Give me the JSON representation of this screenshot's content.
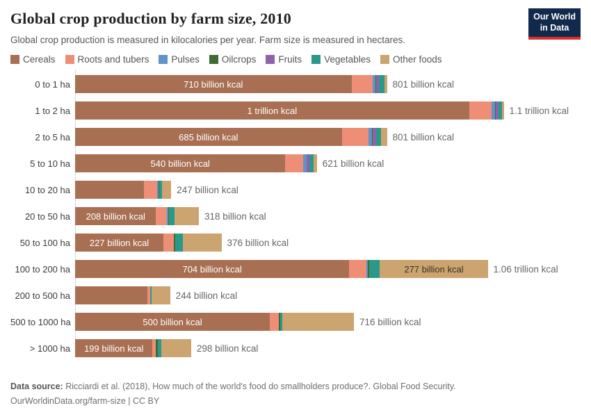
{
  "header": {
    "logo_line1": "Our World",
    "logo_line2": "in Data"
  },
  "chart_data": {
    "type": "bar",
    "stacked": true,
    "orientation": "horizontal",
    "title": "Global crop production by farm size, 2010",
    "subtitle": "Global crop production is measured in kilocalories per year. Farm size is measured in hectares.",
    "unit": "billion kcal",
    "legend_position": "top",
    "grid": false,
    "series": [
      {
        "name": "Cereals",
        "color": "#A86F52"
      },
      {
        "name": "Roots and tubers",
        "color": "#EE8E76"
      },
      {
        "name": "Pulses",
        "color": "#6093C9"
      },
      {
        "name": "Oilcrops",
        "color": "#3E6C35"
      },
      {
        "name": "Fruits",
        "color": "#8F62AB"
      },
      {
        "name": "Vegetables",
        "color": "#2B998A"
      },
      {
        "name": "Other foods",
        "color": "#CBA46F"
      }
    ],
    "categories": [
      "0 to 1 ha",
      "1 to 2 ha",
      "2 to 5 ha",
      "5 to 10 ha",
      "10 to 20 ha",
      "20 to 50 ha",
      "50 to 100 ha",
      "100 to 200 ha",
      "200 to 500 ha",
      "500 to 1000 ha",
      "> 1000 ha"
    ],
    "rows": [
      {
        "category": "0 to 1 ha",
        "values": [
          710,
          55,
          7,
          2,
          7,
          14,
          6
        ],
        "cereals_label": "710 billion kcal",
        "other_foods_label": null,
        "total_label": "801 billion kcal"
      },
      {
        "category": "1 to 2 ha",
        "values": [
          1012,
          57,
          9,
          2,
          7,
          9,
          5
        ],
        "cereals_label": "1 trillion kcal",
        "other_foods_label": null,
        "total_label": "1.1 trillion kcal"
      },
      {
        "category": "2 to 5 ha",
        "values": [
          685,
          69,
          9,
          2,
          9,
          12,
          15
        ],
        "cereals_label": "685 billion kcal",
        "other_foods_label": null,
        "total_label": "801 billion kcal"
      },
      {
        "category": "5 to 10 ha",
        "values": [
          540,
          46,
          9,
          0,
          7,
          10,
          9
        ],
        "cereals_label": "540 billion kcal",
        "other_foods_label": null,
        "total_label": "621 billion kcal"
      },
      {
        "category": "10 to 20 ha",
        "values": [
          177,
          34,
          4,
          2,
          0,
          7,
          23
        ],
        "cereals_label": null,
        "other_foods_label": null,
        "total_label": "247 billion kcal"
      },
      {
        "category": "20 to 50 ha",
        "values": [
          208,
          27,
          4,
          3,
          0,
          14,
          62
        ],
        "cereals_label": "208 billion kcal",
        "other_foods_label": null,
        "total_label": "318 billion kcal"
      },
      {
        "category": "50 to 100 ha",
        "values": [
          227,
          27,
          0,
          4,
          0,
          18,
          100
        ],
        "cereals_label": "227 billion kcal",
        "other_foods_label": null,
        "total_label": "376 billion kcal"
      },
      {
        "category": "100 to 200 ha",
        "values": [
          704,
          45,
          3,
          4,
          0,
          27,
          277
        ],
        "cereals_label": "704 billion kcal",
        "other_foods_label": "277 billion kcal",
        "total_label": "1.06 trillion kcal"
      },
      {
        "category": "200 to 500 ha",
        "values": [
          185,
          7,
          0,
          0,
          0,
          5,
          47
        ],
        "cereals_label": null,
        "other_foods_label": null,
        "total_label": "244 billion kcal"
      },
      {
        "category": "500 to 1000 ha",
        "values": [
          500,
          23,
          0,
          4,
          0,
          5,
          184
        ],
        "cereals_label": "500 billion kcal",
        "other_foods_label": null,
        "total_label": "716 billion kcal"
      },
      {
        "category": "> 1000 ha",
        "values": [
          199,
          9,
          0,
          5,
          0,
          9,
          76
        ],
        "cereals_label": "199 billion kcal",
        "other_foods_label": null,
        "total_label": "298 billion kcal"
      }
    ]
  },
  "footer": {
    "source_bold": "Data source:",
    "source_rest": " Ricciardi et al. (2018), How much of the world's food do smallholders produce?. Global Food Security.",
    "url": "OurWorldinData.org/farm-size",
    "license": " | CC BY"
  }
}
